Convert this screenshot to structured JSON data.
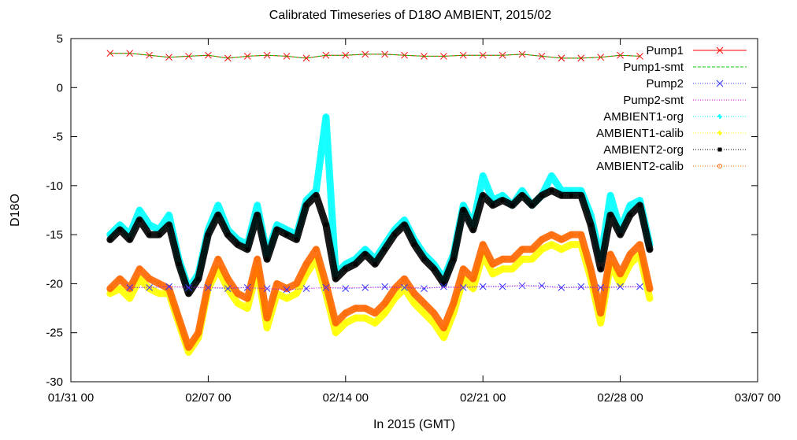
{
  "chart_data": {
    "type": "line",
    "title": "Calibrated Timeseries of D18O AMBIENT, 2015/02",
    "xlabel": "In 2015 (GMT)",
    "ylabel": "D18O",
    "x_ticks": [
      "01/31 00",
      "02/07 00",
      "02/14 00",
      "02/21 00",
      "02/28 00",
      "03/07 00"
    ],
    "x_range_days": [
      0,
      35
    ],
    "y_ticks": [
      "5",
      "0",
      "-5",
      "-10",
      "-15",
      "-20",
      "-25",
      "-30"
    ],
    "ylim": [
      -30,
      5
    ],
    "grid": false,
    "legend_position": "top-right",
    "series": [
      {
        "name": "Pump1",
        "color": "#ff0000",
        "marker": "x",
        "line": "solid",
        "day": [
          2.0,
          3.0,
          4.0,
          5.0,
          6.0,
          7.0,
          8.0,
          9.0,
          10.0,
          11.0,
          12.0,
          13.0,
          14.0,
          15.0,
          16.0,
          17.0,
          18.0,
          19.0,
          20.0,
          21.0,
          22.0,
          23.0,
          24.0,
          25.0,
          26.0,
          27.0,
          28.0,
          29.0
        ],
        "value": [
          3.5,
          3.5,
          3.3,
          3.1,
          3.2,
          3.3,
          3.0,
          3.2,
          3.3,
          3.2,
          3.0,
          3.3,
          3.3,
          3.4,
          3.4,
          3.3,
          3.2,
          3.2,
          3.3,
          3.3,
          3.3,
          3.4,
          3.2,
          3.0,
          3.0,
          3.1,
          3.3,
          3.2
        ]
      },
      {
        "name": "Pump1-smt",
        "color": "#00cc00",
        "marker": "none",
        "line": "dashed",
        "day": [
          2.0,
          3.0,
          4.0,
          5.0,
          6.0,
          7.0,
          8.0,
          9.0,
          10.0,
          11.0,
          12.0,
          13.0,
          14.0,
          15.0,
          16.0,
          17.0,
          18.0,
          19.0,
          20.0,
          21.0,
          22.0,
          23.0,
          24.0,
          25.0,
          26.0,
          27.0,
          28.0,
          29.0
        ],
        "value": [
          3.5,
          3.5,
          3.3,
          3.1,
          3.2,
          3.3,
          3.0,
          3.2,
          3.3,
          3.2,
          3.0,
          3.3,
          3.3,
          3.4,
          3.4,
          3.3,
          3.2,
          3.2,
          3.3,
          3.3,
          3.3,
          3.4,
          3.2,
          3.0,
          3.0,
          3.1,
          3.3,
          3.2
        ]
      },
      {
        "name": "Pump2",
        "color": "#3333ff",
        "marker": "x",
        "line": "dotted",
        "day": [
          3.0,
          4.0,
          5.0,
          6.0,
          7.0,
          8.0,
          9.0,
          10.0,
          11.0,
          12.0,
          13.0,
          14.0,
          15.0,
          16.0,
          17.0,
          18.0,
          19.0,
          20.0,
          21.0,
          22.0,
          23.0,
          24.0,
          25.0,
          26.0,
          27.0,
          28.0,
          29.0
        ],
        "value": [
          -20.4,
          -20.4,
          -20.3,
          -20.4,
          -20.4,
          -20.5,
          -20.4,
          -20.5,
          -20.6,
          -20.5,
          -20.4,
          -20.5,
          -20.4,
          -20.3,
          -20.4,
          -20.5,
          -20.3,
          -20.4,
          -20.3,
          -20.3,
          -20.2,
          -20.2,
          -20.4,
          -20.3,
          -20.4,
          -20.3,
          -20.3
        ]
      },
      {
        "name": "Pump2-smt",
        "color": "#cc00cc",
        "marker": "none",
        "line": "dotted",
        "day": [
          3.0,
          5.0,
          7.0,
          9.0,
          11.0,
          13.0,
          15.0,
          17.0,
          19.0,
          21.0,
          23.0,
          25.0,
          27.0,
          29.0
        ],
        "value": [
          -20.4,
          -20.3,
          -20.4,
          -20.4,
          -20.6,
          -20.4,
          -20.4,
          -20.4,
          -20.4,
          -20.3,
          -20.2,
          -20.4,
          -20.4,
          -20.3
        ]
      },
      {
        "name": "AMBIENT1-org",
        "color": "#00ffff",
        "marker": "star",
        "line": "dotted",
        "day": [
          2.0,
          2.5,
          3.0,
          3.5,
          4.0,
          4.5,
          5.0,
          5.5,
          6.0,
          6.5,
          7.0,
          7.5,
          8.0,
          8.5,
          9.0,
          9.5,
          10.0,
          10.5,
          11.0,
          11.5,
          12.0,
          12.5,
          13.0,
          13.5,
          14.0,
          14.5,
          15.0,
          15.5,
          16.0,
          16.5,
          17.0,
          17.5,
          18.0,
          18.5,
          19.0,
          19.5,
          20.0,
          20.5,
          21.0,
          21.5,
          22.0,
          22.5,
          23.0,
          23.5,
          24.0,
          24.5,
          25.0,
          25.5,
          26.0,
          26.5,
          27.0,
          27.5,
          28.0,
          28.5,
          29.0,
          29.5
        ],
        "value": [
          -15.0,
          -14.0,
          -15.0,
          -12.5,
          -14.0,
          -14.5,
          -13.0,
          -17.5,
          -20.5,
          -19.0,
          -14.5,
          -12.0,
          -14.5,
          -15.5,
          -16.0,
          -12.0,
          -17.0,
          -14.0,
          -14.5,
          -15.0,
          -11.5,
          -10.5,
          -3.0,
          -19.0,
          -18.0,
          -17.5,
          -16.5,
          -17.5,
          -16.0,
          -14.5,
          -13.5,
          -15.5,
          -17.0,
          -18.0,
          -19.5,
          -17.0,
          -12.0,
          -14.0,
          -9.0,
          -11.5,
          -11.0,
          -12.0,
          -10.5,
          -12.0,
          -11.0,
          -9.0,
          -10.5,
          -10.5,
          -10.5,
          -13.0,
          -17.5,
          -11.0,
          -14.5,
          -12.0,
          -11.5,
          -16.0
        ]
      },
      {
        "name": "AMBIENT1-calib",
        "color": "#ffff00",
        "marker": "star",
        "line": "dotted",
        "day": [
          2.0,
          2.5,
          3.0,
          3.5,
          4.0,
          4.5,
          5.0,
          5.5,
          6.0,
          6.5,
          7.0,
          7.5,
          8.0,
          8.5,
          9.0,
          9.5,
          10.0,
          10.5,
          11.0,
          11.5,
          12.0,
          12.5,
          13.0,
          13.5,
          14.0,
          14.5,
          15.0,
          15.5,
          16.0,
          16.5,
          17.0,
          17.5,
          18.0,
          18.5,
          19.0,
          19.5,
          20.0,
          20.5,
          21.0,
          21.5,
          22.0,
          22.5,
          23.0,
          23.5,
          24.0,
          24.5,
          25.0,
          25.5,
          26.0,
          26.5,
          27.0,
          27.5,
          28.0,
          28.5,
          29.0,
          29.5
        ],
        "value": [
          -21.0,
          -20.5,
          -21.5,
          -19.5,
          -20.5,
          -21.0,
          -21.0,
          -24.0,
          -27.0,
          -25.5,
          -20.5,
          -18.5,
          -20.5,
          -22.0,
          -22.5,
          -18.5,
          -24.5,
          -21.0,
          -21.5,
          -21.0,
          -19.0,
          -17.5,
          -21.0,
          -25.0,
          -24.0,
          -23.5,
          -23.5,
          -24.0,
          -23.0,
          -21.5,
          -20.5,
          -22.0,
          -23.0,
          -24.0,
          -25.5,
          -23.0,
          -19.5,
          -20.5,
          -17.0,
          -19.0,
          -18.5,
          -18.5,
          -17.5,
          -17.5,
          -16.5,
          -16.0,
          -16.5,
          -16.0,
          -16.0,
          -19.5,
          -24.0,
          -18.0,
          -20.0,
          -18.0,
          -17.0,
          -21.5
        ]
      },
      {
        "name": "AMBIENT2-org",
        "color": "#000000",
        "marker": "square",
        "line": "dotted",
        "day": [
          2.0,
          2.5,
          3.0,
          3.5,
          4.0,
          4.5,
          5.0,
          5.5,
          6.0,
          6.5,
          7.0,
          7.5,
          8.0,
          8.5,
          9.0,
          9.5,
          10.0,
          10.5,
          11.0,
          11.5,
          12.0,
          12.5,
          13.0,
          13.5,
          14.0,
          14.5,
          15.0,
          15.5,
          16.0,
          16.5,
          17.0,
          17.5,
          18.0,
          18.5,
          19.0,
          19.5,
          20.0,
          20.5,
          21.0,
          21.5,
          22.0,
          22.5,
          23.0,
          23.5,
          24.0,
          24.5,
          25.0,
          25.5,
          26.0,
          26.5,
          27.0,
          27.5,
          28.0,
          28.5,
          29.0,
          29.5
        ],
        "value": [
          -15.5,
          -14.5,
          -15.5,
          -13.5,
          -15.0,
          -15.0,
          -14.0,
          -18.0,
          -21.0,
          -19.5,
          -15.0,
          -13.0,
          -15.0,
          -16.0,
          -16.5,
          -13.0,
          -17.5,
          -14.5,
          -15.0,
          -15.5,
          -12.0,
          -11.0,
          -14.0,
          -19.5,
          -18.5,
          -18.0,
          -17.0,
          -18.0,
          -16.5,
          -15.0,
          -14.0,
          -16.0,
          -17.5,
          -18.5,
          -20.0,
          -17.5,
          -12.5,
          -14.5,
          -11.0,
          -12.0,
          -11.5,
          -12.0,
          -11.0,
          -12.0,
          -11.0,
          -10.5,
          -11.0,
          -11.0,
          -11.0,
          -14.0,
          -18.5,
          -13.0,
          -15.0,
          -13.0,
          -12.0,
          -16.5
        ]
      },
      {
        "name": "AMBIENT2-calib",
        "color": "#ff6600",
        "marker": "circle",
        "line": "dotted",
        "day": [
          2.0,
          2.5,
          3.0,
          3.5,
          4.0,
          4.5,
          5.0,
          5.5,
          6.0,
          6.5,
          7.0,
          7.5,
          8.0,
          8.5,
          9.0,
          9.5,
          10.0,
          10.5,
          11.0,
          11.5,
          12.0,
          12.5,
          13.0,
          13.5,
          14.0,
          14.5,
          15.0,
          15.5,
          16.0,
          16.5,
          17.0,
          17.5,
          18.0,
          18.5,
          19.0,
          19.5,
          20.0,
          20.5,
          21.0,
          21.5,
          22.0,
          22.5,
          23.0,
          23.5,
          24.0,
          24.5,
          25.0,
          25.5,
          26.0,
          26.5,
          27.0,
          27.5,
          28.0,
          28.5,
          29.0,
          29.5
        ],
        "value": [
          -20.5,
          -19.5,
          -20.5,
          -18.5,
          -19.5,
          -20.0,
          -20.5,
          -23.5,
          -26.5,
          -25.0,
          -20.0,
          -17.5,
          -19.5,
          -21.0,
          -21.5,
          -17.5,
          -23.5,
          -20.0,
          -20.5,
          -20.0,
          -18.0,
          -16.5,
          -20.0,
          -24.0,
          -23.0,
          -22.5,
          -22.5,
          -23.0,
          -22.0,
          -20.5,
          -19.5,
          -21.0,
          -22.0,
          -23.0,
          -24.5,
          -22.0,
          -18.5,
          -19.5,
          -16.0,
          -18.0,
          -17.5,
          -17.5,
          -16.5,
          -16.5,
          -15.5,
          -15.0,
          -15.5,
          -15.0,
          -15.0,
          -18.5,
          -23.0,
          -17.0,
          -19.0,
          -17.0,
          -16.0,
          -20.5
        ]
      }
    ]
  }
}
